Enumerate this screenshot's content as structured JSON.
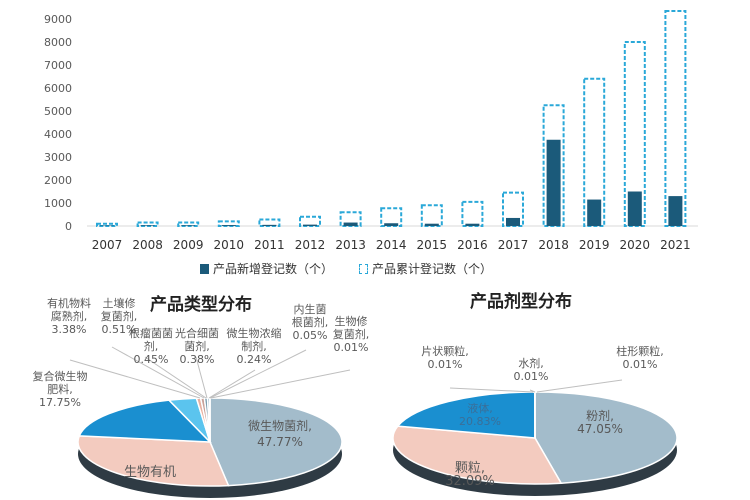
{
  "chart_data": [
    {
      "type": "bar",
      "categories": [
        "2007",
        "2008",
        "2009",
        "2010",
        "2011",
        "2012",
        "2013",
        "2014",
        "2015",
        "2016",
        "2017",
        "2018",
        "2019",
        "2020",
        "2021"
      ],
      "ylim": [
        0,
        10000
      ],
      "yticks": [
        0,
        1000,
        2000,
        3000,
        4000,
        5000,
        6000,
        7000,
        8000,
        9000,
        10000
      ],
      "series": [
        {
          "name": "产品新增登记数（个）",
          "color": "#1b5a7a",
          "values": [
            20,
            30,
            30,
            40,
            50,
            60,
            150,
            120,
            100,
            100,
            350,
            3750,
            1150,
            1500,
            1300
          ]
        },
        {
          "name": "产品累计登记数（个）",
          "color": "#2aa8d8",
          "style": "dashed-outline",
          "values": [
            100,
            150,
            150,
            200,
            280,
            400,
            600,
            770,
            900,
            1050,
            1450,
            5250,
            6400,
            8000,
            9350
          ]
        }
      ],
      "legend": "bottom"
    },
    {
      "type": "pie",
      "title": "产品类型分布",
      "slices": [
        {
          "label": "微生物菌剂, 47.77%",
          "value": 47.77,
          "color": "#a3bccb"
        },
        {
          "label": "生物有机",
          "value": 29.46,
          "color": "#f3cbbf"
        },
        {
          "label": "复合微生物肥料, 17.75%",
          "value": 17.75,
          "color": "#1a8fd0"
        },
        {
          "label": "有机物料腐熟剂, 3.38%",
          "value": 3.38,
          "color": "#5bc4ee"
        },
        {
          "label": "土壤修复菌剂, 0.51%",
          "value": 0.51,
          "color": "#e8b0a0"
        },
        {
          "label": "根瘤菌菌剂, 0.45%",
          "value": 0.45,
          "color": "#c9a29a"
        },
        {
          "label": "光合细菌菌剂, 0.38%",
          "value": 0.38,
          "color": "#7f9fb0"
        },
        {
          "label": "微生物浓缩制剂, 0.24%",
          "value": 0.24,
          "color": "#2a6f97"
        },
        {
          "label": "内生菌根菌剂, 0.05%",
          "value": 0.05,
          "color": "#5bc4ee"
        },
        {
          "label": "生物修复菌剂, 0.01%",
          "value": 0.01,
          "color": "#a3bccb"
        }
      ]
    },
    {
      "type": "pie",
      "title": "产品剂型分布",
      "slices": [
        {
          "label": "粉剂, 47.05%",
          "value": 47.05,
          "color": "#a3bccb"
        },
        {
          "label": "颗粒, 32.09%",
          "value": 32.09,
          "color": "#f3cbbf"
        },
        {
          "label": "液体, 20.83%",
          "value": 20.83,
          "color": "#1a8fd0"
        },
        {
          "label": "片状颗粒, 0.01%",
          "value": 0.01,
          "color": "#5bc4ee"
        },
        {
          "label": "水剂, 0.01%",
          "value": 0.01,
          "color": "#e8b0a0"
        },
        {
          "label": "柱形颗粒, 0.01%",
          "value": 0.01,
          "color": "#7f9fb0"
        }
      ]
    }
  ]
}
